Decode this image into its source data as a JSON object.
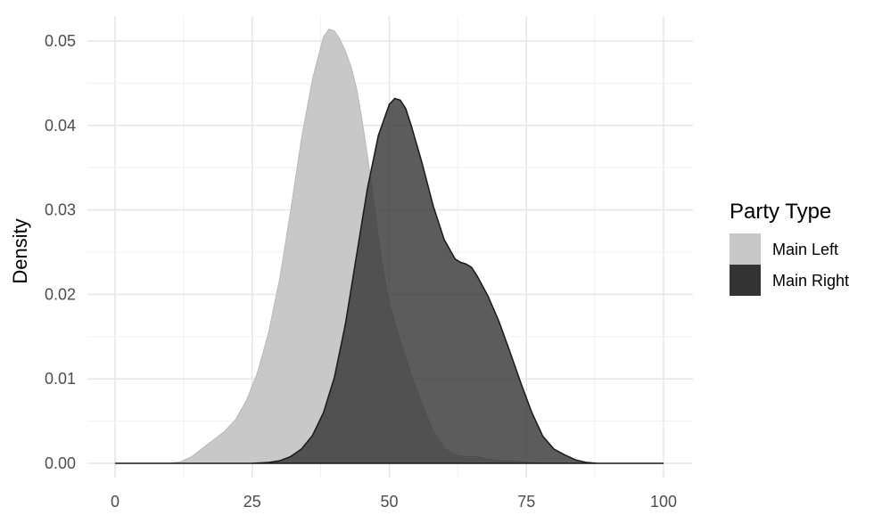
{
  "chart_data": {
    "type": "area",
    "title": "",
    "xlabel": "",
    "ylabel": "Density",
    "xlim": [
      0,
      100
    ],
    "ylim": [
      0,
      0.053
    ],
    "x_ticks": [
      0,
      25,
      50,
      75,
      100
    ],
    "x_tick_labels": [
      "0",
      "25",
      "50",
      "75",
      "100"
    ],
    "y_ticks": [
      0,
      0.01,
      0.02,
      0.03,
      0.04,
      0.05
    ],
    "y_tick_labels": [
      "0.00",
      "0.01",
      "0.02",
      "0.03",
      "0.04",
      "0.05"
    ],
    "grid": true,
    "legend": {
      "title": "Party Type",
      "position": "right"
    },
    "series": [
      {
        "name": "Main Left",
        "color": "#c8c8c8",
        "x": [
          0,
          10,
          12,
          14,
          16,
          18,
          20,
          22,
          24,
          26,
          28,
          30,
          32,
          34,
          36,
          38,
          39,
          40,
          41,
          42,
          43,
          44,
          45,
          46,
          47,
          48,
          49,
          50,
          52,
          54,
          56,
          58,
          60,
          62,
          64,
          66,
          68,
          70,
          72,
          74,
          76,
          78,
          100
        ],
        "y": [
          0,
          0,
          0.0002,
          0.0008,
          0.0018,
          0.0028,
          0.0038,
          0.0052,
          0.0075,
          0.0108,
          0.0155,
          0.0218,
          0.0298,
          0.0385,
          0.0455,
          0.0505,
          0.0514,
          0.0512,
          0.0502,
          0.0488,
          0.047,
          0.0445,
          0.0408,
          0.0365,
          0.0318,
          0.0268,
          0.0225,
          0.019,
          0.0145,
          0.0105,
          0.007,
          0.0038,
          0.0018,
          0.001,
          0.0008,
          0.0008,
          0.0005,
          0.0003,
          0.0003,
          0.0002,
          0.0001,
          0,
          0
        ]
      },
      {
        "name": "Main Right",
        "color": "#333333",
        "x": [
          0,
          25,
          28,
          30,
          32,
          34,
          36,
          38,
          40,
          42,
          44,
          46,
          48,
          50,
          51,
          52,
          53,
          54,
          56,
          58,
          60,
          62,
          63,
          64,
          65,
          66,
          68,
          70,
          72,
          74,
          76,
          78,
          80,
          82,
          84,
          86,
          88,
          90,
          100
        ],
        "y": [
          0,
          0,
          0.0001,
          0.0003,
          0.0008,
          0.0017,
          0.0033,
          0.006,
          0.0102,
          0.0165,
          0.0245,
          0.0325,
          0.0388,
          0.0425,
          0.0432,
          0.043,
          0.042,
          0.04,
          0.0355,
          0.0305,
          0.0265,
          0.0242,
          0.0238,
          0.0236,
          0.0232,
          0.0222,
          0.0198,
          0.0168,
          0.0132,
          0.0095,
          0.006,
          0.0032,
          0.0017,
          0.001,
          0.0004,
          0.0001,
          0,
          0,
          0
        ]
      }
    ]
  }
}
